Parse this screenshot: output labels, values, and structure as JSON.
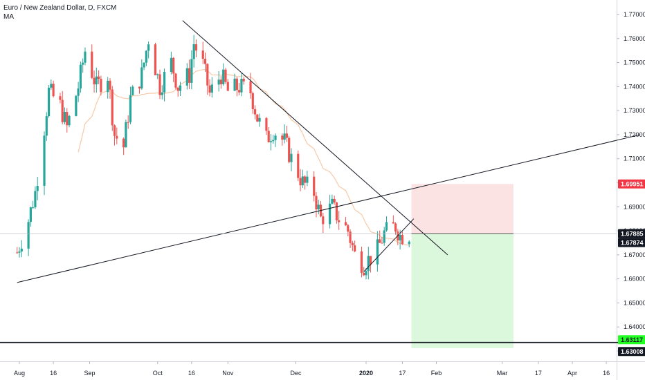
{
  "legend": {
    "title": "Euro / New Zealand Dollar, D, FXCM",
    "indicator": "MA"
  },
  "colors": {
    "up": "#26a69a",
    "down": "#ef5350",
    "ma": "#f7c9a8",
    "trendline": "#131722",
    "stop_zone": "#fcdede",
    "target_zone": "#d6f7d6",
    "stop_badge": "#f23645",
    "target_badge": "#22ff22",
    "price_badge": "#131722"
  },
  "chart_data": {
    "type": "candlestick",
    "symbol": "Euro / New Zealand Dollar, D, FXCM",
    "ylim": [
      1.6245,
      1.7725
    ],
    "y_ticks": [
      "1.77000",
      "1.76000",
      "1.75000",
      "1.74000",
      "1.73000",
      "1.72000",
      "1.71000",
      "1.70000",
      "1.69000",
      "1.68000",
      "1.67000",
      "1.66000",
      "1.65000",
      "1.64000",
      "1.63000"
    ],
    "x_ticks": [
      "Aug",
      "16",
      "Sep",
      "Oct",
      "16",
      "Nov",
      "Dec",
      "2020",
      "17",
      "Feb",
      "Mar",
      "17",
      "Apr",
      "16"
    ],
    "x_tick_dates": [
      "2019-08-01",
      "2019-08-16",
      "2019-09-01",
      "2019-10-01",
      "2019-10-16",
      "2019-11-01",
      "2019-12-01",
      "2020-01-01",
      "2020-01-17",
      "2020-02-01",
      "2020-03-01",
      "2020-03-17",
      "2020-04-01",
      "2020-04-16"
    ],
    "closes": [
      {
        "date": "2019-07-31",
        "close": 1.671
      },
      {
        "date": "2019-08-05",
        "close": 1.6845
      },
      {
        "date": "2019-08-08",
        "close": 1.696
      },
      {
        "date": "2019-08-12",
        "close": 1.723
      },
      {
        "date": "2019-08-14",
        "close": 1.738
      },
      {
        "date": "2019-08-19",
        "close": 1.732
      },
      {
        "date": "2019-08-22",
        "close": 1.723
      },
      {
        "date": "2019-08-27",
        "close": 1.74
      },
      {
        "date": "2019-08-30",
        "close": 1.755
      },
      {
        "date": "2019-09-04",
        "close": 1.74
      },
      {
        "date": "2019-09-09",
        "close": 1.745
      },
      {
        "date": "2019-09-12",
        "close": 1.72
      },
      {
        "date": "2019-09-16",
        "close": 1.715
      },
      {
        "date": "2019-09-19",
        "close": 1.735
      },
      {
        "date": "2019-09-24",
        "close": 1.745
      },
      {
        "date": "2019-09-27",
        "close": 1.76
      },
      {
        "date": "2019-10-02",
        "close": 1.74
      },
      {
        "date": "2019-10-07",
        "close": 1.75
      },
      {
        "date": "2019-10-10",
        "close": 1.74
      },
      {
        "date": "2019-10-15",
        "close": 1.745
      },
      {
        "date": "2019-10-17",
        "close": 1.758
      },
      {
        "date": "2019-10-21",
        "close": 1.749
      },
      {
        "date": "2019-10-24",
        "close": 1.737
      },
      {
        "date": "2019-10-29",
        "close": 1.745
      },
      {
        "date": "2019-11-01",
        "close": 1.738
      },
      {
        "date": "2019-11-06",
        "close": 1.74
      },
      {
        "date": "2019-11-11",
        "close": 1.738
      },
      {
        "date": "2019-11-14",
        "close": 1.727
      },
      {
        "date": "2019-11-18",
        "close": 1.718
      },
      {
        "date": "2019-11-21",
        "close": 1.722
      },
      {
        "date": "2019-11-26",
        "close": 1.717
      },
      {
        "date": "2019-11-29",
        "close": 1.71
      },
      {
        "date": "2019-12-04",
        "close": 1.7
      },
      {
        "date": "2019-12-09",
        "close": 1.696
      },
      {
        "date": "2019-12-12",
        "close": 1.685
      },
      {
        "date": "2019-12-17",
        "close": 1.69
      },
      {
        "date": "2019-12-20",
        "close": 1.685
      },
      {
        "date": "2019-12-24",
        "close": 1.68
      },
      {
        "date": "2019-12-27",
        "close": 1.67
      },
      {
        "date": "2019-12-31",
        "close": 1.666
      },
      {
        "date": "2020-01-06",
        "close": 1.672
      },
      {
        "date": "2020-01-09",
        "close": 1.679
      },
      {
        "date": "2020-01-14",
        "close": 1.682
      },
      {
        "date": "2020-01-16",
        "close": 1.678
      },
      {
        "date": "2020-01-20",
        "close": 1.6787
      }
    ],
    "position": {
      "type": "short",
      "entry": 1.67885,
      "stop": 1.69951,
      "target": 1.63117,
      "last_price": 1.67874,
      "horizontal_level": 1.63008
    },
    "trendlines": [
      {
        "name": "descending resistance",
        "from": {
          "date": "2019-10-12",
          "price": 1.7675
        },
        "to": {
          "date": "2020-02-06",
          "price": 1.67
        }
      },
      {
        "name": "ascending support",
        "from": {
          "date": "2019-07-31",
          "price": 1.6585
        },
        "to": {
          "date": "2020-05-01",
          "price": 1.72
        }
      },
      {
        "name": "short uptrend",
        "from": {
          "date": "2019-12-31",
          "price": 1.663
        },
        "to": {
          "date": "2020-01-22",
          "price": 1.685
        }
      }
    ],
    "price_badges": [
      {
        "label": "1.69951",
        "kind": "stop"
      },
      {
        "label": "1.67885",
        "kind": "price"
      },
      {
        "label": "1.67874",
        "kind": "price"
      },
      {
        "label": "1.63117",
        "kind": "target"
      },
      {
        "label": "1.63008",
        "kind": "price"
      }
    ],
    "moving_average": "MA"
  }
}
